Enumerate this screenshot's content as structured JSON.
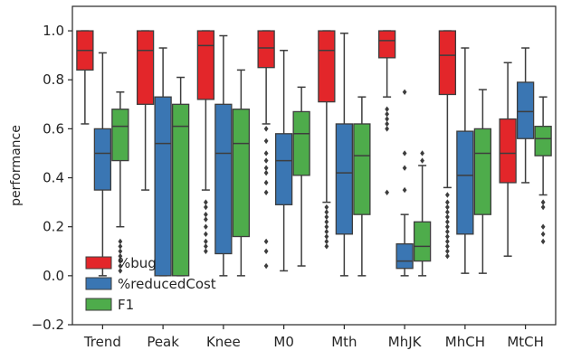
{
  "chart_data": {
    "type": "boxplot",
    "ylabel": "performance",
    "xlabel": "",
    "ylim": [
      -0.2,
      1.1
    ],
    "yticks": [
      -0.2,
      0.0,
      0.2,
      0.4,
      0.6,
      0.8,
      1.0
    ],
    "ytick_labels": [
      "−0.2",
      "0.0",
      "0.2",
      "0.4",
      "0.6",
      "0.8",
      "1.0"
    ],
    "categories": [
      "Trend",
      "Peak",
      "Knee",
      "M0",
      "Mth",
      "MhJK",
      "MhCH",
      "MtCH"
    ],
    "grid": false,
    "legend_position": "lower-left",
    "series": [
      {
        "name": "%bug",
        "color": "#e3262a",
        "boxes": [
          {
            "whislo": 0.62,
            "q1": 0.84,
            "med": 0.92,
            "q3": 1.0,
            "whishi": 1.0,
            "fliers": []
          },
          {
            "whislo": 0.35,
            "q1": 0.7,
            "med": 0.92,
            "q3": 1.0,
            "whishi": 1.0,
            "fliers": []
          },
          {
            "whislo": 0.35,
            "q1": 0.72,
            "med": 0.94,
            "q3": 1.0,
            "whishi": 1.0,
            "fliers": [
              0.3,
              0.28,
              0.25,
              0.23,
              0.2,
              0.17,
              0.14,
              0.12,
              0.1
            ]
          },
          {
            "whislo": 0.62,
            "q1": 0.85,
            "med": 0.93,
            "q3": 1.0,
            "whishi": 1.0,
            "fliers": [
              0.6,
              0.55,
              0.5,
              0.47,
              0.44,
              0.42,
              0.38,
              0.34,
              0.14,
              0.1,
              0.04
            ]
          },
          {
            "whislo": 0.3,
            "q1": 0.71,
            "med": 0.92,
            "q3": 1.0,
            "whishi": 1.0,
            "fliers": [
              0.28,
              0.26,
              0.24,
              0.22,
              0.2,
              0.18,
              0.16,
              0.14,
              0.12
            ]
          },
          {
            "whislo": 0.73,
            "q1": 0.89,
            "med": 0.96,
            "q3": 1.0,
            "whishi": 1.0,
            "fliers": [
              0.68,
              0.66,
              0.64,
              0.62,
              0.6,
              0.34
            ]
          },
          {
            "whislo": 0.36,
            "q1": 0.74,
            "med": 0.9,
            "q3": 1.0,
            "whishi": 1.0,
            "fliers": [
              0.33,
              0.3,
              0.28,
              0.26,
              0.24,
              0.22,
              0.2,
              0.18,
              0.16,
              0.14,
              0.12,
              0.1,
              0.08
            ]
          },
          {
            "whislo": 0.08,
            "q1": 0.38,
            "med": 0.5,
            "q3": 0.64,
            "whishi": 0.87,
            "fliers": []
          }
        ]
      },
      {
        "name": "%reducedCost",
        "color": "#3a76b3",
        "boxes": [
          {
            "whislo": 0.0,
            "q1": 0.35,
            "med": 0.5,
            "q3": 0.6,
            "whishi": 0.91,
            "fliers": []
          },
          {
            "whislo": 0.0,
            "q1": 0.0,
            "med": 0.54,
            "q3": 0.73,
            "whishi": 0.93,
            "fliers": []
          },
          {
            "whislo": 0.0,
            "q1": 0.09,
            "med": 0.5,
            "q3": 0.7,
            "whishi": 0.98,
            "fliers": []
          },
          {
            "whislo": 0.02,
            "q1": 0.29,
            "med": 0.47,
            "q3": 0.58,
            "whishi": 0.92,
            "fliers": []
          },
          {
            "whislo": 0.0,
            "q1": 0.17,
            "med": 0.42,
            "q3": 0.62,
            "whishi": 0.99,
            "fliers": []
          },
          {
            "whislo": 0.0,
            "q1": 0.03,
            "med": 0.06,
            "q3": 0.13,
            "whishi": 0.25,
            "fliers": [
              0.75,
              0.5,
              0.44,
              0.35
            ]
          },
          {
            "whislo": 0.01,
            "q1": 0.17,
            "med": 0.41,
            "q3": 0.59,
            "whishi": 0.93,
            "fliers": []
          },
          {
            "whislo": 0.38,
            "q1": 0.56,
            "med": 0.67,
            "q3": 0.79,
            "whishi": 0.93,
            "fliers": []
          }
        ]
      },
      {
        "name": "F1",
        "color": "#4eac4b",
        "boxes": [
          {
            "whislo": 0.2,
            "q1": 0.47,
            "med": 0.61,
            "q3": 0.68,
            "whishi": 0.75,
            "fliers": [
              0.14,
              0.12,
              0.1,
              0.08,
              0.06,
              0.04,
              0.02
            ]
          },
          {
            "whislo": 0.0,
            "q1": 0.0,
            "med": 0.61,
            "q3": 0.7,
            "whishi": 0.81,
            "fliers": []
          },
          {
            "whislo": 0.0,
            "q1": 0.16,
            "med": 0.54,
            "q3": 0.68,
            "whishi": 0.84,
            "fliers": []
          },
          {
            "whislo": 0.04,
            "q1": 0.41,
            "med": 0.58,
            "q3": 0.67,
            "whishi": 0.77,
            "fliers": []
          },
          {
            "whislo": 0.0,
            "q1": 0.25,
            "med": 0.49,
            "q3": 0.62,
            "whishi": 0.73,
            "fliers": []
          },
          {
            "whislo": 0.0,
            "q1": 0.06,
            "med": 0.12,
            "q3": 0.22,
            "whishi": 0.45,
            "fliers": [
              0.5,
              0.47
            ]
          },
          {
            "whislo": 0.01,
            "q1": 0.25,
            "med": 0.5,
            "q3": 0.6,
            "whishi": 0.76,
            "fliers": []
          },
          {
            "whislo": 0.33,
            "q1": 0.49,
            "med": 0.56,
            "q3": 0.61,
            "whishi": 0.73,
            "fliers": [
              0.3,
              0.28,
              0.2,
              0.17,
              0.14
            ]
          }
        ]
      }
    ]
  }
}
